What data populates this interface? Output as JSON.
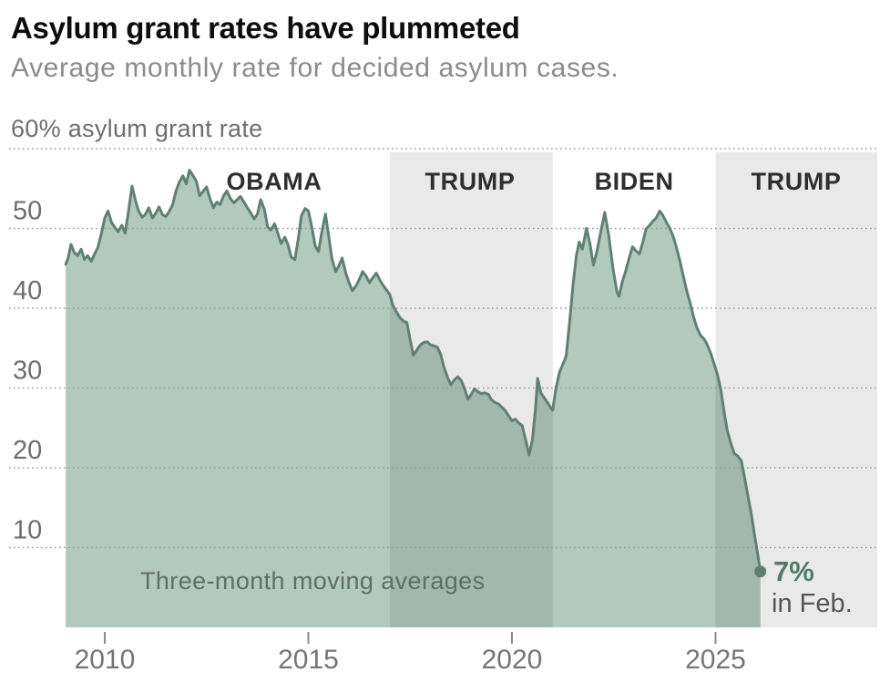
{
  "header": {
    "title": "Asylum grant rates have plummeted",
    "subtitle": "Average monthly rate for decided asylum cases."
  },
  "chart_data": {
    "type": "area",
    "title": "Asylum grant rates have plummeted",
    "subtitle": "Average monthly rate for decided asylum cases.",
    "y_axis_note": "60% asylum grant rate",
    "annotation": "Three-month moving averages",
    "end_label": {
      "value": "7%",
      "sub": "in Feb."
    },
    "unit": "%",
    "ylim": [
      0,
      60
    ],
    "yticks": [
      50,
      40,
      30,
      20,
      10
    ],
    "xticks": [
      2010,
      2015,
      2020,
      2025
    ],
    "xlim": [
      2009.0,
      2026.1
    ],
    "grid": "dotted-horizontal",
    "legend_position": "none",
    "bands": [
      {
        "label": "OBAMA",
        "start": null,
        "end": 2017.0,
        "shaded": false,
        "label_x": 2014.16
      },
      {
        "label": "TRUMP",
        "start": 2017.0,
        "end": 2021.0,
        "shaded": true,
        "label_x": 2018.97
      },
      {
        "label": "BIDEN",
        "start": 2021.0,
        "end": 2025.0,
        "shaded": false,
        "label_x": 2023.0
      },
      {
        "label": "TRUMP",
        "start": 2025.0,
        "end": null,
        "shaded": true,
        "label_x": 2026.98
      }
    ],
    "colors": {
      "area_fill": "#b2c9be",
      "line": "#5e8174",
      "band": "rgba(0,0,0,0.088)",
      "grid": "#999999",
      "end_label_value": "#4f7d6a"
    },
    "series": [
      {
        "name": "Asylum grant rate (three-month moving average)",
        "points": [
          [
            2009.04,
            45.5
          ],
          [
            2009.1,
            46.3
          ],
          [
            2009.17,
            48.0
          ],
          [
            2009.25,
            47.0
          ],
          [
            2009.33,
            46.6
          ],
          [
            2009.42,
            47.4
          ],
          [
            2009.5,
            46.1
          ],
          [
            2009.58,
            46.6
          ],
          [
            2009.67,
            45.9
          ],
          [
            2009.75,
            46.8
          ],
          [
            2009.83,
            47.6
          ],
          [
            2009.92,
            49.4
          ],
          [
            2010.0,
            51.3
          ],
          [
            2010.08,
            52.2
          ],
          [
            2010.17,
            50.7
          ],
          [
            2010.25,
            50.1
          ],
          [
            2010.33,
            49.6
          ],
          [
            2010.42,
            50.4
          ],
          [
            2010.5,
            49.4
          ],
          [
            2010.58,
            52.0
          ],
          [
            2010.67,
            55.3
          ],
          [
            2010.75,
            53.6
          ],
          [
            2010.83,
            52.2
          ],
          [
            2010.92,
            51.4
          ],
          [
            2011.0,
            51.8
          ],
          [
            2011.08,
            52.6
          ],
          [
            2011.17,
            51.3
          ],
          [
            2011.25,
            51.9
          ],
          [
            2011.33,
            52.7
          ],
          [
            2011.42,
            51.7
          ],
          [
            2011.5,
            51.5
          ],
          [
            2011.58,
            52.1
          ],
          [
            2011.67,
            53.0
          ],
          [
            2011.75,
            54.7
          ],
          [
            2011.83,
            55.8
          ],
          [
            2011.92,
            56.6
          ],
          [
            2012.0,
            55.6
          ],
          [
            2012.08,
            57.3
          ],
          [
            2012.17,
            56.6
          ],
          [
            2012.25,
            55.9
          ],
          [
            2012.33,
            54.1
          ],
          [
            2012.42,
            54.7
          ],
          [
            2012.5,
            55.2
          ],
          [
            2012.58,
            53.8
          ],
          [
            2012.67,
            52.6
          ],
          [
            2012.75,
            53.3
          ],
          [
            2012.83,
            53.0
          ],
          [
            2012.92,
            54.1
          ],
          [
            2013.0,
            54.7
          ],
          [
            2013.08,
            53.8
          ],
          [
            2013.17,
            53.2
          ],
          [
            2013.25,
            53.6
          ],
          [
            2013.33,
            54.0
          ],
          [
            2013.42,
            53.3
          ],
          [
            2013.5,
            52.6
          ],
          [
            2013.58,
            52.0
          ],
          [
            2013.67,
            51.2
          ],
          [
            2013.75,
            51.8
          ],
          [
            2013.83,
            53.6
          ],
          [
            2013.92,
            52.4
          ],
          [
            2014.0,
            50.2
          ],
          [
            2014.08,
            49.8
          ],
          [
            2014.17,
            50.6
          ],
          [
            2014.25,
            49.4
          ],
          [
            2014.33,
            48.1
          ],
          [
            2014.42,
            48.9
          ],
          [
            2014.5,
            48.0
          ],
          [
            2014.58,
            46.4
          ],
          [
            2014.67,
            46.1
          ],
          [
            2014.75,
            48.6
          ],
          [
            2014.83,
            51.6
          ],
          [
            2014.92,
            52.5
          ],
          [
            2015.0,
            52.2
          ],
          [
            2015.08,
            50.3
          ],
          [
            2015.17,
            47.8
          ],
          [
            2015.25,
            47.1
          ],
          [
            2015.33,
            49.6
          ],
          [
            2015.42,
            51.8
          ],
          [
            2015.5,
            49.0
          ],
          [
            2015.58,
            46.2
          ],
          [
            2015.67,
            44.6
          ],
          [
            2015.75,
            45.3
          ],
          [
            2015.83,
            46.3
          ],
          [
            2015.92,
            44.4
          ],
          [
            2016.0,
            43.2
          ],
          [
            2016.08,
            42.2
          ],
          [
            2016.17,
            42.8
          ],
          [
            2016.25,
            43.6
          ],
          [
            2016.33,
            44.6
          ],
          [
            2016.42,
            44.0
          ],
          [
            2016.5,
            43.2
          ],
          [
            2016.58,
            43.8
          ],
          [
            2016.67,
            44.4
          ],
          [
            2016.75,
            43.6
          ],
          [
            2016.83,
            42.9
          ],
          [
            2016.92,
            42.3
          ],
          [
            2017.0,
            41.7
          ],
          [
            2017.08,
            40.3
          ],
          [
            2017.17,
            39.5
          ],
          [
            2017.25,
            38.8
          ],
          [
            2017.33,
            38.4
          ],
          [
            2017.42,
            38.2
          ],
          [
            2017.5,
            36.0
          ],
          [
            2017.58,
            34.1
          ],
          [
            2017.67,
            34.8
          ],
          [
            2017.75,
            35.4
          ],
          [
            2017.83,
            35.7
          ],
          [
            2017.92,
            35.8
          ],
          [
            2018.0,
            35.4
          ],
          [
            2018.08,
            35.3
          ],
          [
            2018.17,
            35.1
          ],
          [
            2018.25,
            34.2
          ],
          [
            2018.33,
            32.6
          ],
          [
            2018.42,
            31.3
          ],
          [
            2018.5,
            30.4
          ],
          [
            2018.58,
            31.0
          ],
          [
            2018.67,
            31.4
          ],
          [
            2018.75,
            31.0
          ],
          [
            2018.83,
            30.0
          ],
          [
            2018.92,
            28.6
          ],
          [
            2019.0,
            29.2
          ],
          [
            2019.08,
            29.9
          ],
          [
            2019.17,
            29.5
          ],
          [
            2019.25,
            29.3
          ],
          [
            2019.33,
            29.4
          ],
          [
            2019.42,
            29.2
          ],
          [
            2019.5,
            28.5
          ],
          [
            2019.58,
            28.2
          ],
          [
            2019.67,
            28.0
          ],
          [
            2019.75,
            27.6
          ],
          [
            2019.83,
            27.2
          ],
          [
            2019.92,
            26.5
          ],
          [
            2020.0,
            25.9
          ],
          [
            2020.08,
            26.1
          ],
          [
            2020.17,
            25.6
          ],
          [
            2020.25,
            25.3
          ],
          [
            2020.33,
            23.6
          ],
          [
            2020.42,
            21.6
          ],
          [
            2020.5,
            23.5
          ],
          [
            2020.58,
            27.5
          ],
          [
            2020.63,
            31.2
          ],
          [
            2020.71,
            29.4
          ],
          [
            2020.83,
            28.5
          ],
          [
            2020.92,
            27.8
          ],
          [
            2021.0,
            27.2
          ],
          [
            2021.08,
            30.0
          ],
          [
            2021.17,
            32.0
          ],
          [
            2021.25,
            33.0
          ],
          [
            2021.33,
            34.0
          ],
          [
            2021.42,
            38.5
          ],
          [
            2021.5,
            43.0
          ],
          [
            2021.58,
            46.5
          ],
          [
            2021.65,
            48.3
          ],
          [
            2021.73,
            47.4
          ],
          [
            2021.83,
            50.0
          ],
          [
            2021.92,
            48.0
          ],
          [
            2022.0,
            45.4
          ],
          [
            2022.08,
            47.0
          ],
          [
            2022.17,
            49.3
          ],
          [
            2022.28,
            52.0
          ],
          [
            2022.38,
            49.0
          ],
          [
            2022.48,
            45.0
          ],
          [
            2022.58,
            42.0
          ],
          [
            2022.63,
            41.5
          ],
          [
            2022.71,
            43.3
          ],
          [
            2022.79,
            44.6
          ],
          [
            2022.88,
            46.3
          ],
          [
            2022.96,
            47.7
          ],
          [
            2023.04,
            47.2
          ],
          [
            2023.13,
            46.8
          ],
          [
            2023.21,
            48.2
          ],
          [
            2023.29,
            49.9
          ],
          [
            2023.38,
            50.4
          ],
          [
            2023.46,
            50.9
          ],
          [
            2023.54,
            51.3
          ],
          [
            2023.63,
            52.2
          ],
          [
            2023.71,
            51.6
          ],
          [
            2023.79,
            50.8
          ],
          [
            2023.88,
            50.0
          ],
          [
            2023.96,
            49.0
          ],
          [
            2024.04,
            47.6
          ],
          [
            2024.13,
            45.8
          ],
          [
            2024.21,
            44.0
          ],
          [
            2024.29,
            42.2
          ],
          [
            2024.38,
            40.6
          ],
          [
            2024.46,
            38.9
          ],
          [
            2024.54,
            37.6
          ],
          [
            2024.63,
            36.6
          ],
          [
            2024.71,
            36.2
          ],
          [
            2024.79,
            35.5
          ],
          [
            2024.88,
            34.4
          ],
          [
            2024.96,
            33.1
          ],
          [
            2025.04,
            31.8
          ],
          [
            2025.13,
            29.8
          ],
          [
            2025.21,
            27.0
          ],
          [
            2025.29,
            24.6
          ],
          [
            2025.38,
            23.0
          ],
          [
            2025.46,
            21.8
          ],
          [
            2025.54,
            21.5
          ],
          [
            2025.63,
            20.9
          ],
          [
            2025.71,
            18.9
          ],
          [
            2025.79,
            16.6
          ],
          [
            2025.88,
            14.2
          ],
          [
            2025.96,
            11.5
          ],
          [
            2026.04,
            9.0
          ],
          [
            2026.1,
            7.0
          ]
        ]
      }
    ]
  }
}
